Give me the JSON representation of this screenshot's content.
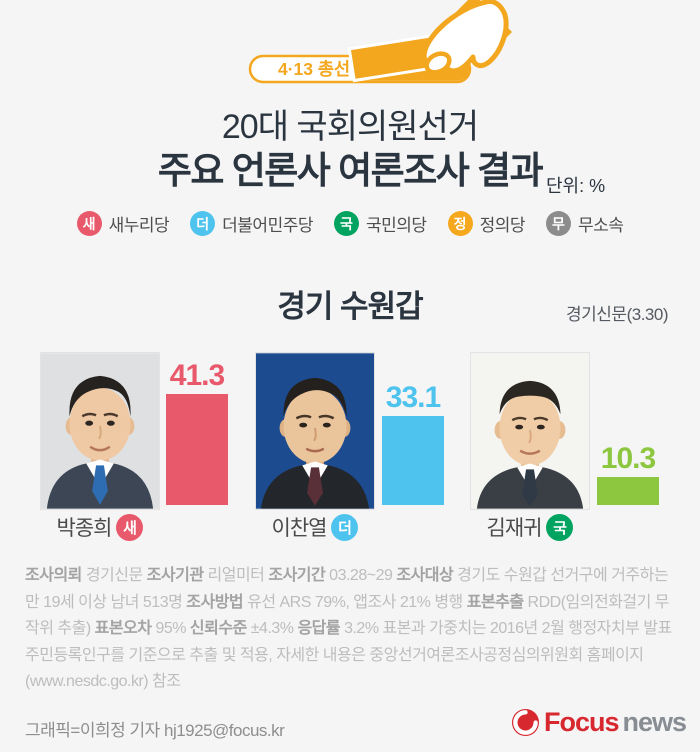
{
  "badge": {
    "label": "4·13 총선",
    "color": "#F3A71E"
  },
  "header": {
    "title_line1": "20대 국회의원선거",
    "title_line2": "주요 언론사 여론조사 결과",
    "unit_label": "단위: %"
  },
  "legend": {
    "items": [
      {
        "letter": "새",
        "name": "새누리당",
        "color": "#E8596B"
      },
      {
        "letter": "더",
        "name": "더불어민주당",
        "color": "#4EC3EE"
      },
      {
        "letter": "국",
        "name": "국민의당",
        "color": "#00A35F"
      },
      {
        "letter": "정",
        "name": "정의당",
        "color": "#F5A81C"
      },
      {
        "letter": "무",
        "name": "무소속",
        "color": "#8C8C8C"
      }
    ]
  },
  "region": {
    "title": "경기 수원갑",
    "source": "경기신문(3.30)"
  },
  "chart_data": {
    "type": "bar",
    "title": "경기 수원갑",
    "subtitle": "20대 국회의원선거 주요 언론사 여론조사 결과",
    "unit": "%",
    "source": "경기신문(3.30)",
    "categories": [
      "박종희",
      "이찬열",
      "김재귀"
    ],
    "values": [
      41.3,
      33.1,
      10.3
    ],
    "ylim": [
      0,
      45
    ],
    "grid": false,
    "legend_position": "none",
    "candidates": [
      {
        "name": "박종희",
        "party": "새누리당",
        "party_letter": "새",
        "value": "41.3",
        "bar_color": "#E8596B",
        "badge_color": "#E8596B"
      },
      {
        "name": "이찬열",
        "party": "더불어민주당",
        "party_letter": "더",
        "value": "33.1",
        "bar_color": "#4EC3EE",
        "badge_color": "#4EC3EE"
      },
      {
        "name": "김재귀",
        "party": "국민의당",
        "party_letter": "국",
        "value": "10.3",
        "bar_color": "#8DC63F",
        "badge_color": "#00A35F"
      }
    ]
  },
  "survey": {
    "segments": [
      {
        "bold": true,
        "text": "조사의뢰"
      },
      {
        "bold": false,
        "text": " 경기신문 "
      },
      {
        "bold": true,
        "text": "조사기관"
      },
      {
        "bold": false,
        "text": " 리얼미터 "
      },
      {
        "bold": true,
        "text": "조사기간"
      },
      {
        "bold": false,
        "text": " 03.28~29 "
      },
      {
        "bold": true,
        "text": "조사대상"
      },
      {
        "bold": false,
        "text": " 경기도 수원갑 선거구에 거주하는 만 19세 이상 남녀 513명 "
      },
      {
        "bold": true,
        "text": "조사방법"
      },
      {
        "bold": false,
        "text": " 유선 ARS 79%, 앱조사 21% 병행 "
      },
      {
        "bold": true,
        "text": "표본추출"
      },
      {
        "bold": false,
        "text": " RDD(임의전화걸기 무작위 추출) "
      },
      {
        "bold": true,
        "text": "표본오차"
      },
      {
        "bold": false,
        "text": " 95% "
      },
      {
        "bold": true,
        "text": "신뢰수준"
      },
      {
        "bold": false,
        "text": " ±4.3% "
      },
      {
        "bold": true,
        "text": "응답률"
      },
      {
        "bold": false,
        "text": " 3.2% 표본과 가중치는 2016년 2월 행정자치부 발표 주민등록인구를 기준으로 추출 및 적용, 자세한 내용은 중앙선거여론조사공정심의위원회 홈페이지 (www.nesdc.go.kr) 참조"
      }
    ]
  },
  "credit": {
    "text": "그래픽=이희정 기자 hj1925@focus.kr"
  },
  "logo": {
    "focus": "Focus",
    "news": "news"
  }
}
